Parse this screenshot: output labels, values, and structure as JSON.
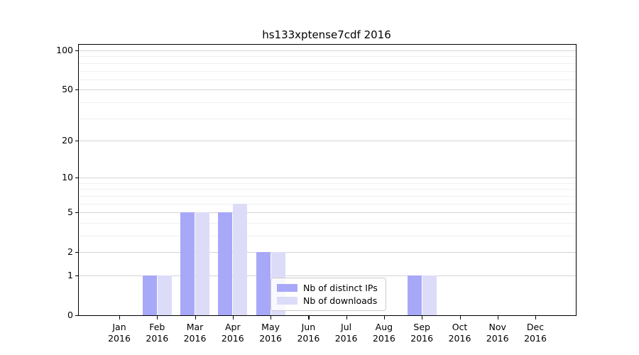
{
  "figure": {
    "title": "hs133xptense7cdf 2016"
  },
  "chart_data": {
    "type": "bar",
    "title": "hs133xptense7cdf 2016",
    "categories": [
      "Jan",
      "Feb",
      "Mar",
      "Apr",
      "May",
      "Jun",
      "Jul",
      "Aug",
      "Sep",
      "Oct",
      "Nov",
      "Dec"
    ],
    "category_year": "2016",
    "series": [
      {
        "name": "Nb of distinct IPs",
        "color": "#a8a8f8",
        "values": [
          0,
          1,
          5,
          5,
          2,
          0,
          0,
          0,
          1,
          0,
          0,
          0
        ]
      },
      {
        "name": "Nb of downloads",
        "color": "#dcdcf9",
        "values": [
          0,
          1,
          5,
          6,
          2,
          0,
          0,
          0,
          1,
          0,
          0,
          0
        ]
      }
    ],
    "xlabel": "",
    "ylabel": "",
    "yscale": "log1p",
    "ylim": [
      0,
      110
    ],
    "yticks": [
      100,
      50,
      20,
      10,
      5,
      2,
      1,
      0
    ],
    "minor_gridlines": [
      90,
      80,
      70,
      60,
      40,
      30,
      9,
      8,
      7,
      6,
      4,
      3
    ],
    "grid": "horizontal",
    "legend_position": "lower center",
    "colors": {
      "major_grid": "#d4d4d4",
      "minor_grid": "#f0f0f0",
      "axis": "#000000"
    }
  }
}
